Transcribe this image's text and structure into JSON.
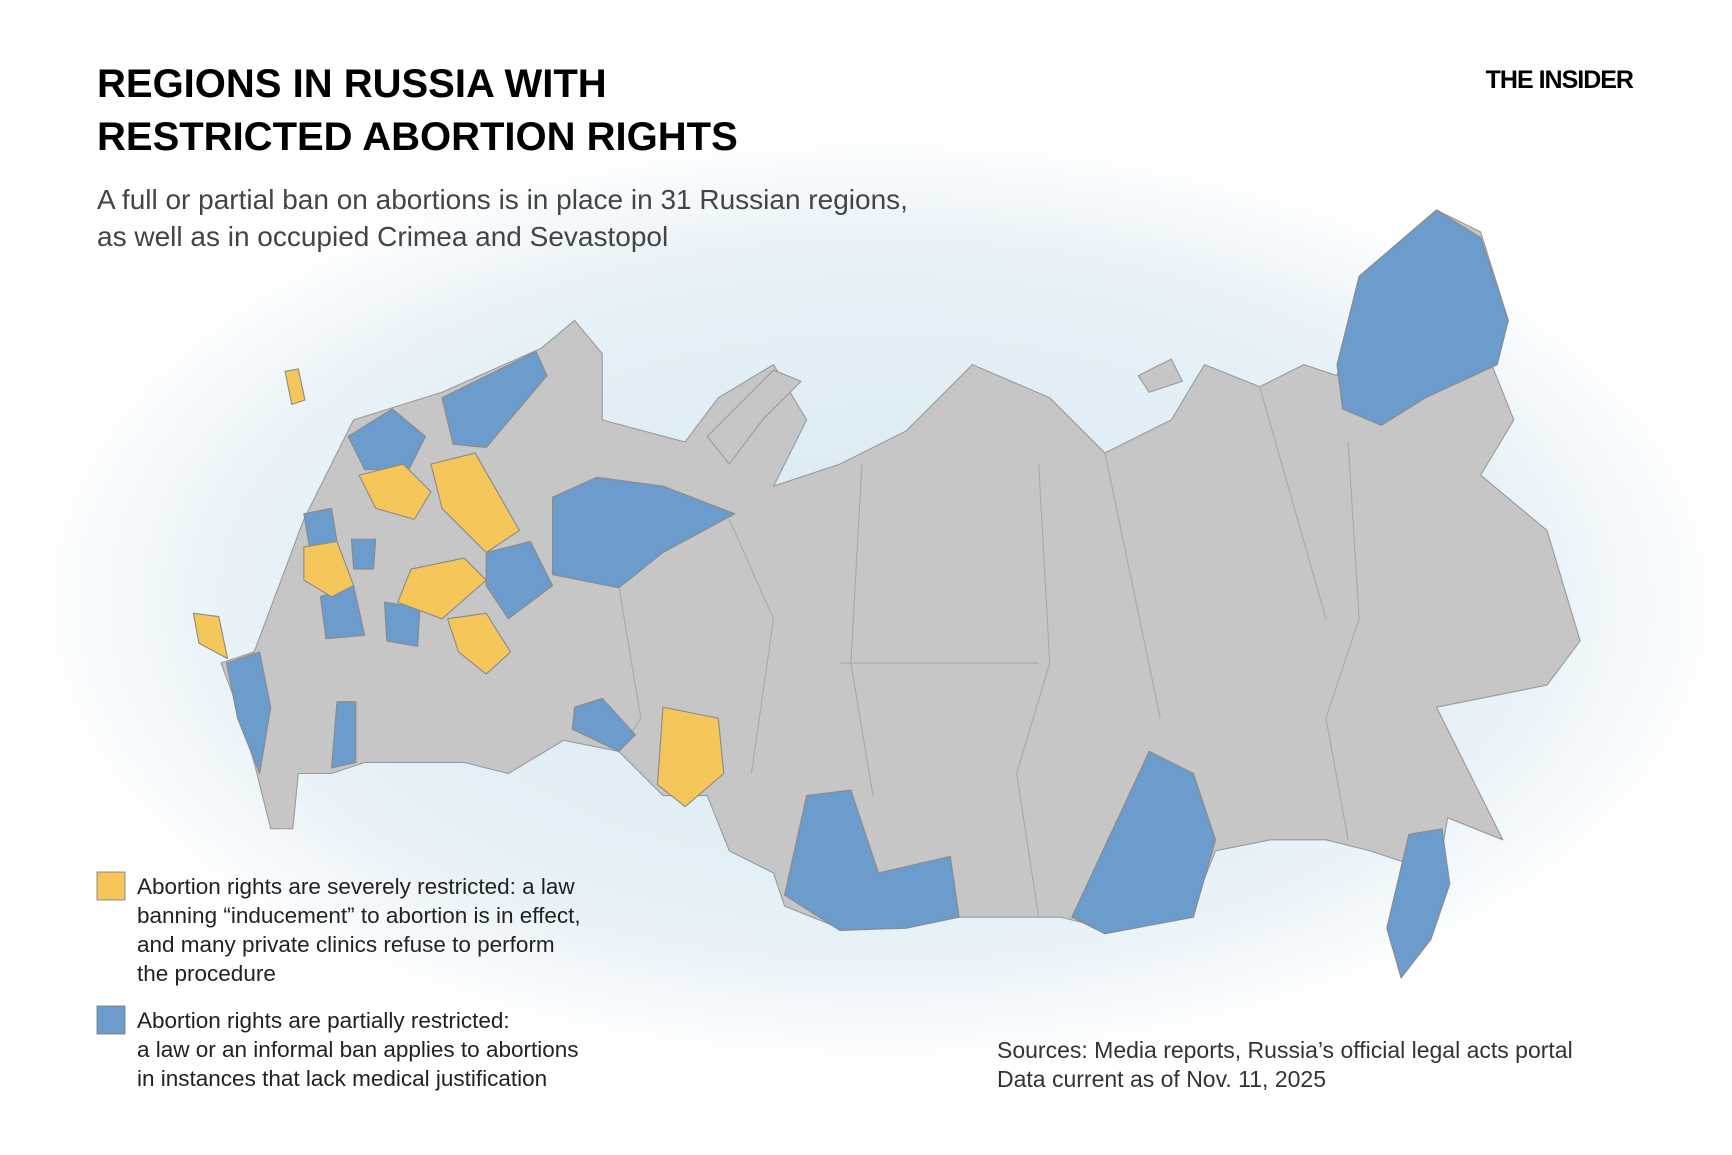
{
  "header": {
    "title_lines": [
      "REGIONS IN RUSSIA WITH",
      "RESTRICTED ABORTION RIGHTS"
    ],
    "subtitle_lines": [
      "A full or partial ban on abortions is in place in 31 Russian regions,",
      "as well as in occupied Crimea and Sevastopol"
    ],
    "brand": "THE INSIDER"
  },
  "legend": [
    {
      "color": "#f5c75a",
      "lines": [
        "Abortion rights are severely restricted: a law",
        "banning “inducement” to abortion is in effect,",
        "and many private clinics refuse to perform",
        "the procedure"
      ]
    },
    {
      "color": "#6b9ccb",
      "lines": [
        "Abortion rights are partially restricted:",
        "a law or an informal ban applies to abortions",
        "in instances that lack medical justification"
      ]
    }
  ],
  "footer": {
    "lines": [
      "Sources: Media reports, Russia’s official legal acts portal",
      "Data current as of Nov. 11, 2025"
    ]
  }
}
